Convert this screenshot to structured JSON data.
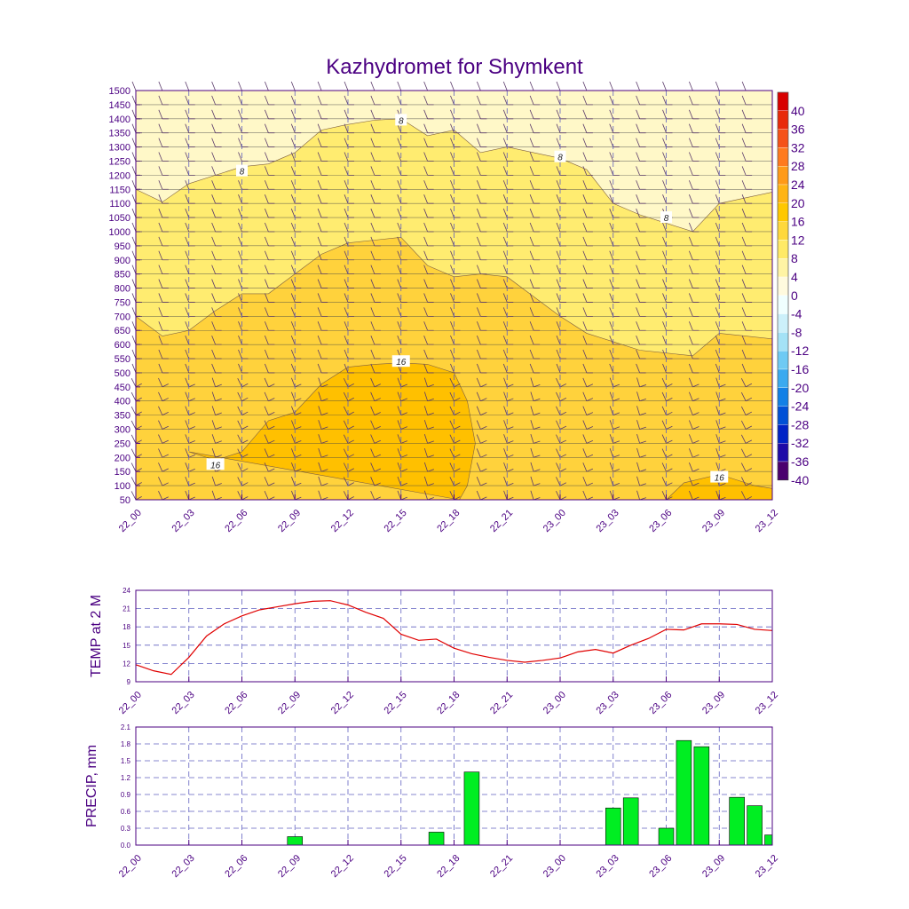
{
  "title": "Kazhydromet for Shymkent",
  "time_labels": [
    "22_00",
    "22_03",
    "22_06",
    "22_09",
    "22_12",
    "22_15",
    "22_18",
    "22_21",
    "23_00",
    "23_03",
    "23_06",
    "23_09",
    "23_12"
  ],
  "colors": {
    "axis": "#4b0082",
    "grid": "#6060c0",
    "temp_line": "#e00000",
    "precip_bar": "#00ee22",
    "contour_line": "#806040",
    "wind": "#5a3a6a",
    "fill_lt8": "#fff8c8",
    "fill_8_12": "#ffec70",
    "fill_12_16": "#ffd23c",
    "fill_gt16": "#ffc000"
  },
  "chart_data": [
    {
      "type": "heatmap",
      "name": "vertical-section",
      "ylim": [
        50,
        1500
      ],
      "y_ticks": [
        50,
        100,
        150,
        200,
        250,
        300,
        350,
        400,
        450,
        500,
        550,
        600,
        650,
        700,
        750,
        800,
        850,
        900,
        950,
        1000,
        1050,
        1100,
        1150,
        1200,
        1250,
        1300,
        1350,
        1400,
        1450,
        1500
      ],
      "contour_levels": [
        8,
        12,
        16
      ],
      "contour_labels": [
        {
          "text": "8",
          "t": 4,
          "level": 1215
        },
        {
          "text": "8",
          "t": 10,
          "level": 1395
        },
        {
          "text": "8",
          "t": 16,
          "level": 1265
        },
        {
          "text": "8",
          "t": 20,
          "level": 1050
        },
        {
          "text": "16",
          "t": 3,
          "level": 175
        },
        {
          "text": "16",
          "t": 10,
          "level": 540
        },
        {
          "text": "16",
          "t": 22,
          "level": 130
        }
      ],
      "isoline_8": {
        "t": [
          0,
          1,
          2,
          3,
          4,
          5,
          6,
          7,
          8,
          9,
          10,
          11,
          12,
          13,
          14,
          15,
          16,
          17,
          18,
          19,
          20,
          21,
          22,
          23,
          24
        ],
        "level": [
          1150,
          1105,
          1170,
          1200,
          1230,
          1240,
          1280,
          1360,
          1380,
          1395,
          1400,
          1340,
          1360,
          1280,
          1300,
          1280,
          1260,
          1220,
          1100,
          1060,
          1030,
          1000,
          1100,
          1120,
          1140
        ]
      },
      "isoline_12": {
        "t": [
          0,
          1,
          2,
          3,
          4,
          5,
          6,
          7,
          8,
          9,
          10,
          11,
          12,
          13,
          14,
          15,
          16,
          17,
          18,
          19,
          20,
          21,
          22,
          23,
          24
        ],
        "level": [
          700,
          630,
          650,
          720,
          780,
          780,
          850,
          920,
          960,
          970,
          980,
          880,
          840,
          850,
          840,
          770,
          700,
          640,
          610,
          580,
          570,
          560,
          640,
          630,
          620
        ]
      },
      "isoline_16": {
        "t": [
          2,
          3,
          4,
          5,
          6,
          7,
          8,
          9,
          10,
          11,
          12,
          12.5,
          12.8,
          12.5,
          12.2
        ],
        "level": [
          220,
          190,
          220,
          330,
          360,
          460,
          520,
          530,
          535,
          530,
          500,
          400,
          250,
          100,
          50
        ]
      },
      "colorbar": {
        "ticks": [
          "40",
          "36",
          "32",
          "28",
          "24",
          "20",
          "16",
          "12",
          "8",
          "4",
          "0",
          "-4",
          "-8",
          "-12",
          "-16",
          "-20",
          "-24",
          "-28",
          "-32",
          "-36",
          "-40"
        ],
        "colors": [
          "#d80000",
          "#e82a0a",
          "#f55218",
          "#ff7a1e",
          "#ff9a18",
          "#ffb414",
          "#ffc800",
          "#ffd83c",
          "#ffea66",
          "#fff4a4",
          "#fffade",
          "#f0ffff",
          "#ccf0fa",
          "#a4e2f6",
          "#6ecaf4",
          "#3aaaf0",
          "#1280e6",
          "#0050d6",
          "#0022c6",
          "#1e0aa8",
          "#4a006e"
        ]
      }
    },
    {
      "type": "line",
      "name": "temperature",
      "ylabel": "TEMP at 2 M",
      "ylim": [
        9,
        24
      ],
      "y_ticks": [
        9,
        12,
        15,
        18,
        21,
        24
      ],
      "x": [
        0,
        1,
        2,
        3,
        4,
        5,
        6,
        7,
        8,
        9,
        10,
        11,
        12,
        13,
        14,
        15,
        16,
        17,
        18,
        19,
        20,
        21,
        22,
        23,
        24,
        25,
        26,
        27,
        28,
        29,
        30,
        31,
        32,
        33,
        34,
        35,
        36
      ],
      "values": [
        11.8,
        10.8,
        10.2,
        13.0,
        16.5,
        18.5,
        19.8,
        20.8,
        21.3,
        21.8,
        22.2,
        22.3,
        21.6,
        20.4,
        19.4,
        16.8,
        15.8,
        16.0,
        14.5,
        13.6,
        13.0,
        12.5,
        12.2,
        12.5,
        12.9,
        13.9,
        14.3,
        13.7,
        15.0,
        16.1,
        17.6,
        17.5,
        18.5,
        18.5,
        18.4,
        17.6,
        17.4
      ]
    },
    {
      "type": "bar",
      "name": "precipitation",
      "ylabel": "PRECIP, mm",
      "ylim": [
        0,
        2.1
      ],
      "y_ticks": [
        "0.0",
        "0.3",
        "0.6",
        "0.9",
        "1.2",
        "1.5",
        "1.8",
        "2.1"
      ],
      "x": [
        9,
        17,
        19,
        27,
        28,
        30,
        31,
        32,
        34,
        35,
        36
      ],
      "values": [
        0.15,
        0.23,
        1.3,
        0.66,
        0.84,
        0.3,
        1.86,
        1.75,
        0.85,
        0.7,
        0.18
      ]
    }
  ]
}
